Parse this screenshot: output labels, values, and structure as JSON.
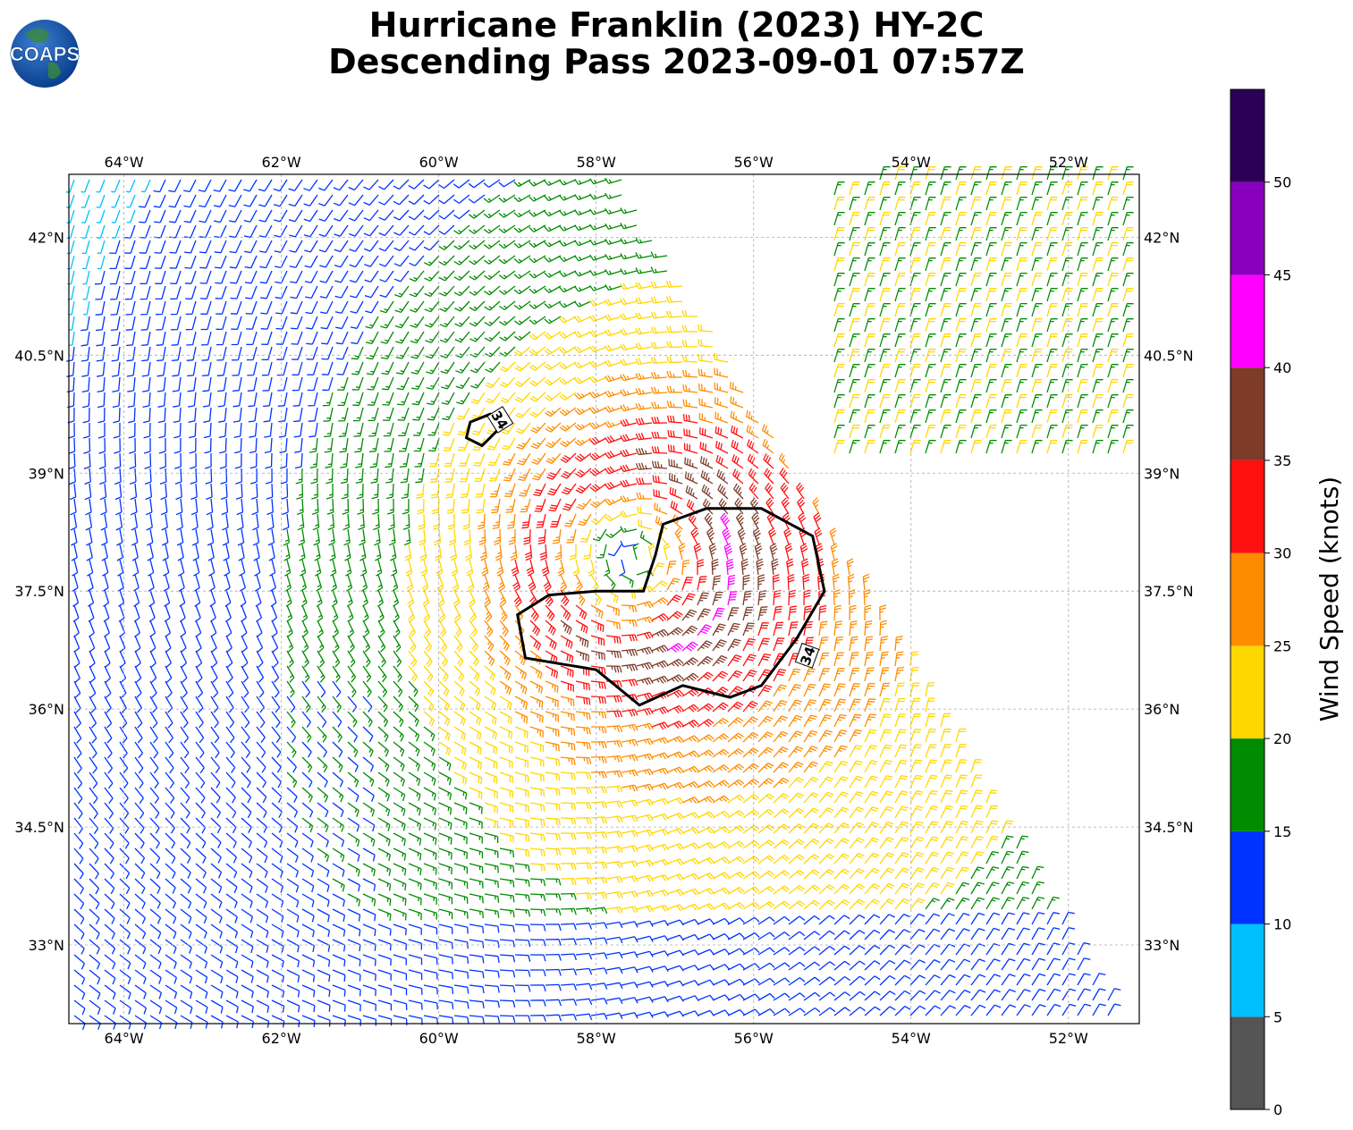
{
  "title": {
    "line1": "Hurricane Franklin (2023) HY-2C",
    "line2": "Descending Pass 2023-09-01 07:57Z"
  },
  "logo": {
    "text": "COAPS",
    "icon": "globe-logo-icon"
  },
  "map": {
    "lon_range": [
      -64.7,
      -51.1
    ],
    "lat_range": [
      32.0,
      42.8
    ],
    "lon_ticks": [
      {
        "value": -64,
        "label": "64°W"
      },
      {
        "value": -62,
        "label": "62°W"
      },
      {
        "value": -60,
        "label": "60°W"
      },
      {
        "value": -58,
        "label": "58°W"
      },
      {
        "value": -56,
        "label": "56°W"
      },
      {
        "value": -54,
        "label": "54°W"
      },
      {
        "value": -52,
        "label": "52°W"
      }
    ],
    "lat_ticks": [
      {
        "value": 42,
        "label": "42°N"
      },
      {
        "value": 40.5,
        "label": "40.5°N"
      },
      {
        "value": 39,
        "label": "39°N"
      },
      {
        "value": 37.5,
        "label": "37.5°N"
      },
      {
        "value": 36,
        "label": "36°N"
      },
      {
        "value": 34.5,
        "label": "34.5°N"
      },
      {
        "value": 33,
        "label": "33°N"
      }
    ],
    "gridlines": true,
    "storm_center": {
      "lon": -57.5,
      "lat": 37.9
    },
    "swath_edge": [
      {
        "lon": -57.7,
        "lat": 42.8
      },
      {
        "lon": -51.9,
        "lat": 33.0
      }
    ],
    "contour_label": "34",
    "contour_34kt_main": [
      [
        -57.15,
        38.35
      ],
      [
        -56.6,
        38.55
      ],
      [
        -55.9,
        38.55
      ],
      [
        -55.25,
        38.2
      ],
      [
        -55.1,
        37.5
      ],
      [
        -55.45,
        36.9
      ],
      [
        -55.9,
        36.3
      ],
      [
        -56.3,
        36.15
      ],
      [
        -56.9,
        36.3
      ],
      [
        -57.45,
        36.05
      ],
      [
        -58.0,
        36.5
      ],
      [
        -58.9,
        36.65
      ],
      [
        -59.0,
        37.2
      ],
      [
        -58.6,
        37.45
      ],
      [
        -58.0,
        37.5
      ],
      [
        -57.4,
        37.5
      ],
      [
        -57.25,
        37.95
      ]
    ],
    "contour_34kt_small": [
      [
        -59.6,
        39.65
      ],
      [
        -59.35,
        39.75
      ],
      [
        -59.25,
        39.55
      ],
      [
        -59.45,
        39.35
      ],
      [
        -59.65,
        39.45
      ]
    ]
  },
  "colorbar": {
    "label": "Wind Speed (knots)",
    "ticks": [
      "0",
      "5",
      "10",
      "15",
      "20",
      "25",
      "30",
      "35",
      "40",
      "45",
      "50"
    ],
    "bins": [
      {
        "min": 0,
        "max": 5,
        "color": "#555555"
      },
      {
        "min": 5,
        "max": 10,
        "color": "#00bfff"
      },
      {
        "min": 10,
        "max": 15,
        "color": "#0033ff"
      },
      {
        "min": 15,
        "max": 20,
        "color": "#008c00"
      },
      {
        "min": 20,
        "max": 25,
        "color": "#ffd700"
      },
      {
        "min": 25,
        "max": 30,
        "color": "#ff8c00"
      },
      {
        "min": 30,
        "max": 35,
        "color": "#ff1010"
      },
      {
        "min": 35,
        "max": 40,
        "color": "#7e3c28"
      },
      {
        "min": 40,
        "max": 45,
        "color": "#ff00ff"
      },
      {
        "min": 45,
        "max": 50,
        "color": "#8800bb"
      },
      {
        "min": 50,
        "max": 55,
        "color": "#2b0055"
      }
    ]
  }
}
